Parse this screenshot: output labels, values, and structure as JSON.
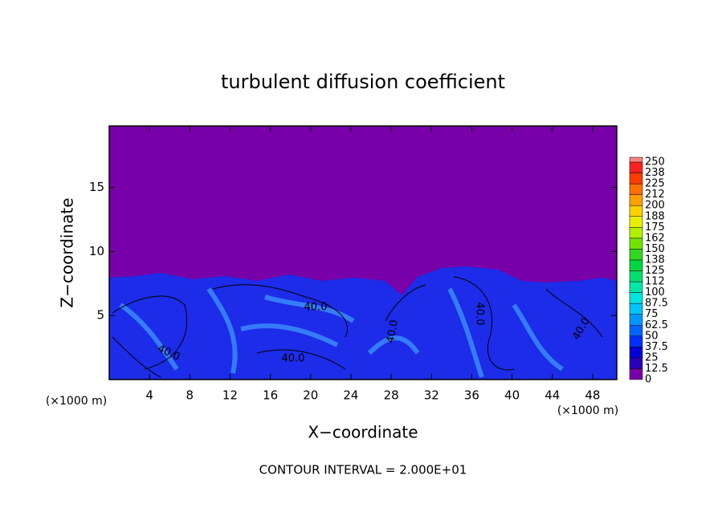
{
  "chart_data": {
    "type": "contour",
    "title": "turbulent diffusion coefficient",
    "x_label": "X−coordinate",
    "y_label": "Z−coordinate",
    "x_unit": "(×1000 m)",
    "footer": "CONTOUR INTERVAL = 2.000E+01",
    "xlim": [
      0,
      50.4
    ],
    "ylim": [
      0,
      19.8
    ],
    "xticks": [
      4,
      8,
      12,
      16,
      20,
      24,
      28,
      32,
      36,
      40,
      44,
      48
    ],
    "yticks": [
      5,
      10,
      15
    ],
    "colorbar": {
      "levels": [
        0,
        12.5,
        25,
        37.5,
        50,
        62.5,
        75,
        87.5,
        100,
        112,
        125,
        138,
        150,
        162,
        175,
        188,
        200,
        212,
        225,
        238,
        250
      ],
      "colors": [
        "#7800a8",
        "#2a00b8",
        "#0000d8",
        "#0030ff",
        "#0064ff",
        "#0096ff",
        "#00c4ff",
        "#00e4e0",
        "#00e8a8",
        "#00e070",
        "#00d840",
        "#30d820",
        "#70e400",
        "#b0f000",
        "#e8f000",
        "#ffd000",
        "#ffa000",
        "#ff7000",
        "#ff3c00",
        "#ff2020",
        "#ff8080"
      ]
    },
    "contour_labels": [
      "40.0",
      "40.0",
      "40.0",
      "40.0",
      "40.0",
      "40.0"
    ]
  }
}
